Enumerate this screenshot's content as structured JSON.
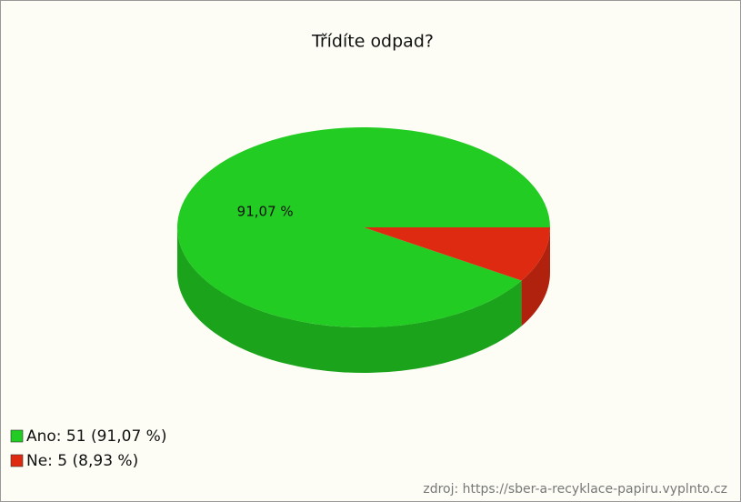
{
  "chart_data": {
    "type": "pie",
    "title": "Třídíte odpad?",
    "categories": [
      "Ano",
      "Ne"
    ],
    "values": [
      91.07,
      8.93
    ],
    "value_labels": [
      "91,07 %",
      null
    ],
    "colors": [
      "#22cc22",
      "#dd2a11"
    ],
    "legend": [
      "Ano: 51 (91,07 %)",
      "Ne: 5 (8,93 %)"
    ],
    "source": "zdroj: https://sber-a-recyklace-papiru.vyplnto.cz"
  }
}
